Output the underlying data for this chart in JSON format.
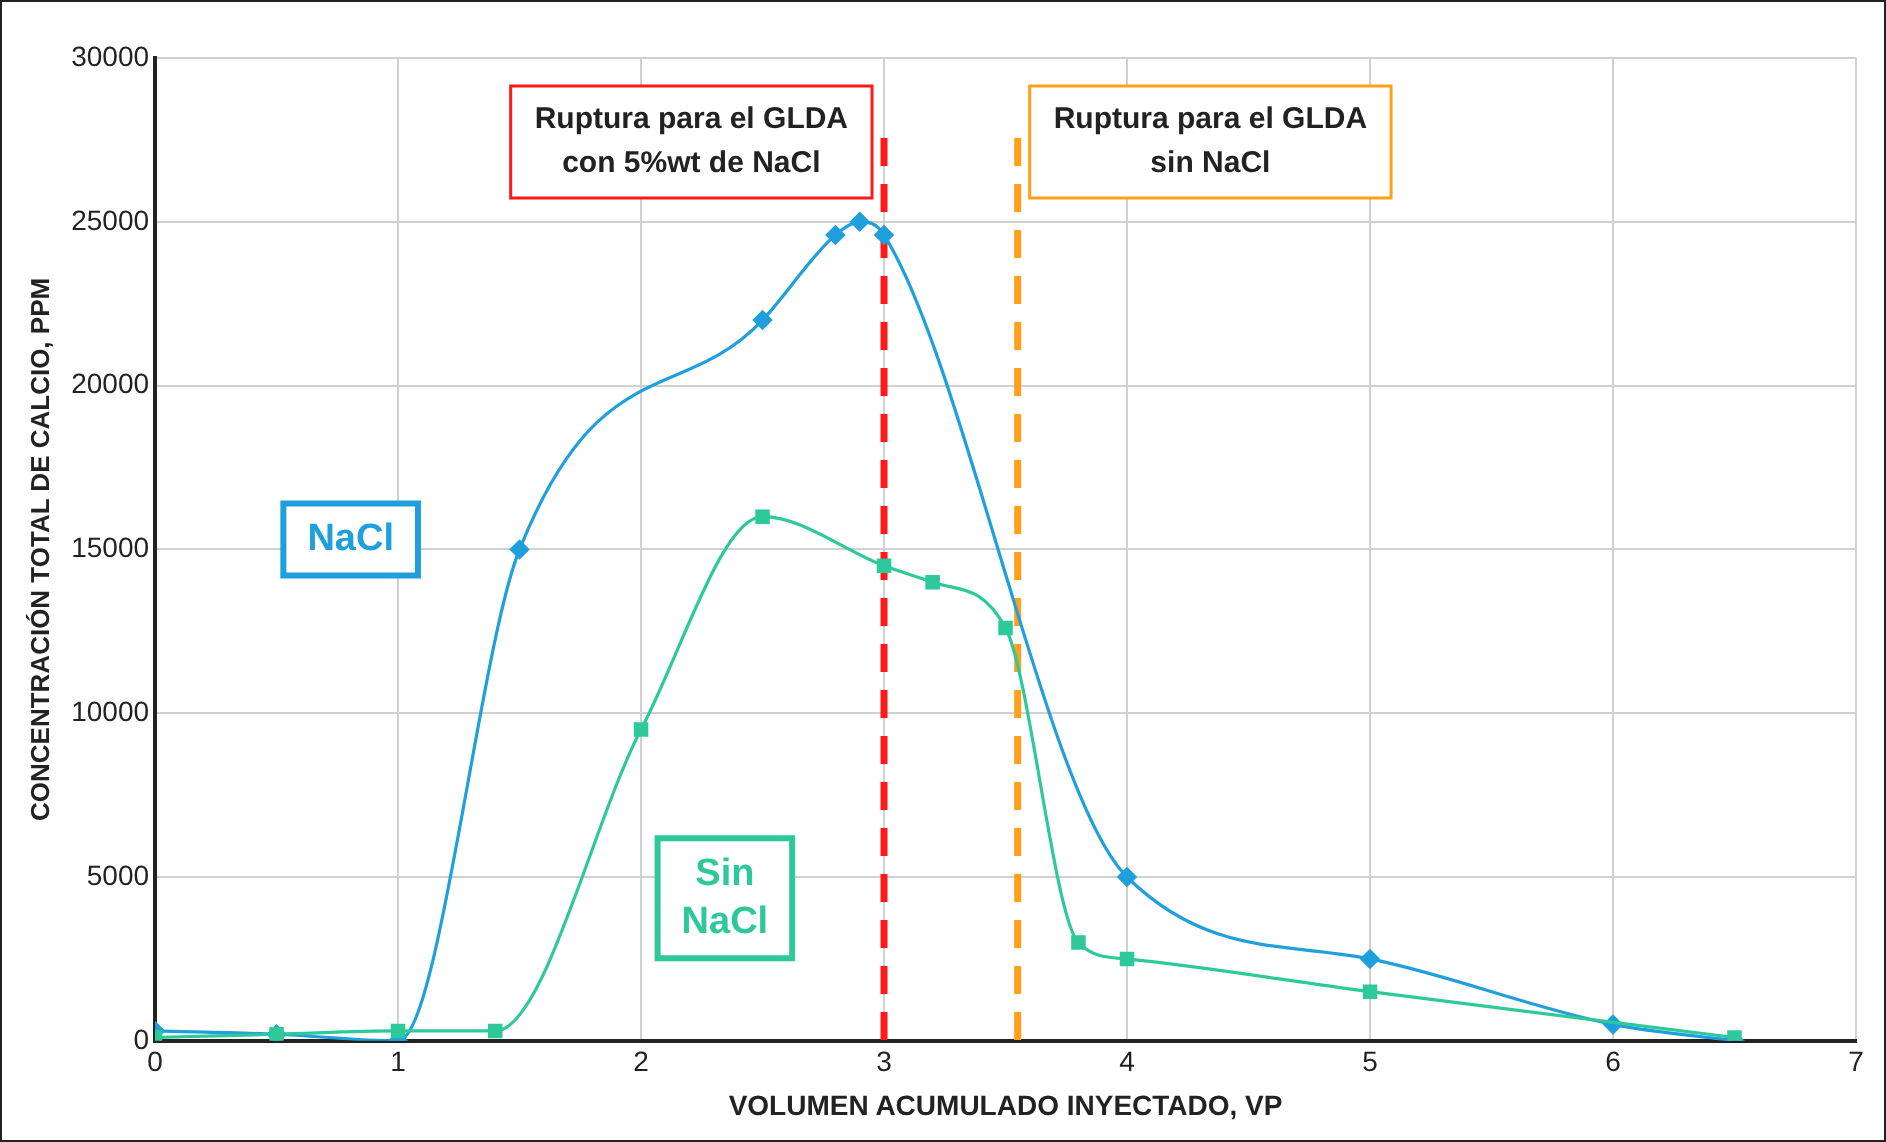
{
  "chart_data": {
    "type": "line",
    "xlabel": "VOLUMEN ACUMULADO INYECTADO, VP",
    "ylabel": "CONCENTRACIÓN TOTAL DE CALCIO, PPM",
    "xlim": [
      0,
      7
    ],
    "xticks": [
      0,
      1,
      2,
      3,
      4,
      5,
      6,
      7
    ],
    "ylim": [
      0,
      30000
    ],
    "yticks": [
      0,
      5000,
      10000,
      15000,
      20000,
      25000,
      30000
    ],
    "grid": true,
    "legend": false,
    "series": [
      {
        "name": "NaCl",
        "color": "#1f9fdb",
        "marker": "diamond",
        "x": [
          0,
          0.5,
          1,
          1.5,
          2.5,
          2.8,
          2.9,
          3,
          4,
          5,
          6,
          6.5
        ],
        "values": [
          300,
          200,
          0,
          15000,
          22000,
          24600,
          25000,
          24600,
          5000,
          2500,
          500,
          0
        ]
      },
      {
        "name": "Sin NaCl",
        "color": "#2ec99a",
        "marker": "square",
        "x": [
          0,
          0.5,
          1,
          1.4,
          2,
          2.5,
          3,
          3.2,
          3.5,
          3.8,
          4,
          5,
          6.5
        ],
        "values": [
          100,
          200,
          300,
          300,
          9500,
          16000,
          14500,
          14000,
          12600,
          3000,
          2500,
          1500,
          100
        ]
      }
    ],
    "ref_lines": [
      {
        "axis": "x",
        "value": 3,
        "label": "Ruptura para el GLDA con 5%wt de NaCl",
        "color": "#ff1a1a",
        "line_style": "dashed"
      },
      {
        "axis": "x",
        "value": 3.55,
        "label": "Ruptura para el GLDA sin NaCl",
        "color": "#ff9f1a",
        "line_style": "dashed"
      }
    ]
  }
}
